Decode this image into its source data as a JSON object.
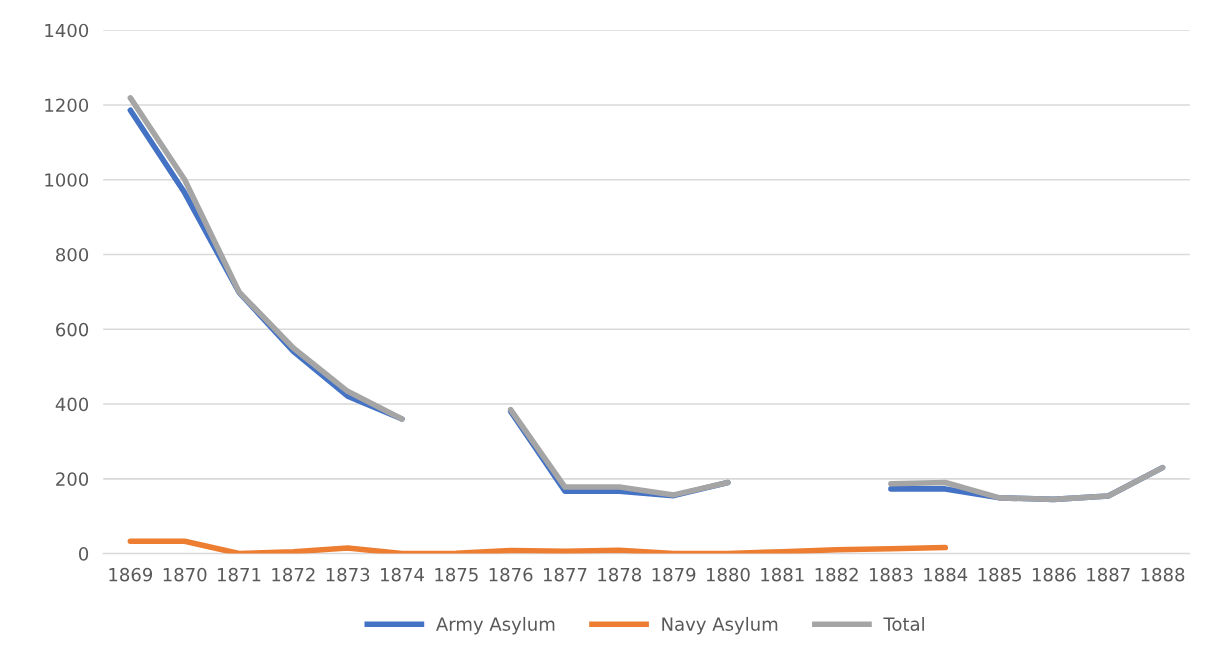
{
  "chart_data": {
    "type": "line",
    "categories": [
      "1869",
      "1870",
      "1871",
      "1872",
      "1873",
      "1874",
      "1875",
      "1876",
      "1877",
      "1878",
      "1879",
      "1880",
      "1881",
      "1882",
      "1883",
      "1884",
      "1885",
      "1886",
      "1887",
      "1888"
    ],
    "series": [
      {
        "name": "Army Asylum",
        "color": "#4472c4",
        "values": [
          1186,
          965,
          699,
          541,
          421,
          360,
          null,
          380,
          167,
          167,
          155,
          190,
          null,
          null,
          173,
          173,
          149,
          145,
          154,
          230
        ]
      },
      {
        "name": "Navy Asylum",
        "color": "#ed7d31",
        "values": [
          33,
          33,
          0,
          5,
          15,
          0,
          1,
          8,
          6,
          9,
          0,
          0,
          5,
          10,
          13,
          16,
          null,
          null,
          null,
          null
        ]
      },
      {
        "name": "Total",
        "color": "#a5a5a5",
        "values": [
          1219,
          1000,
          700,
          550,
          434,
          360,
          null,
          385,
          178,
          178,
          157,
          190,
          null,
          null,
          187,
          190,
          149,
          145,
          154,
          230
        ]
      }
    ],
    "ylim": [
      0,
      1400
    ],
    "yticks": [
      0,
      200,
      400,
      600,
      800,
      1000,
      1200,
      1400
    ],
    "grid": "y",
    "legend": "bottom",
    "line_style": "solid",
    "marker": "none"
  }
}
